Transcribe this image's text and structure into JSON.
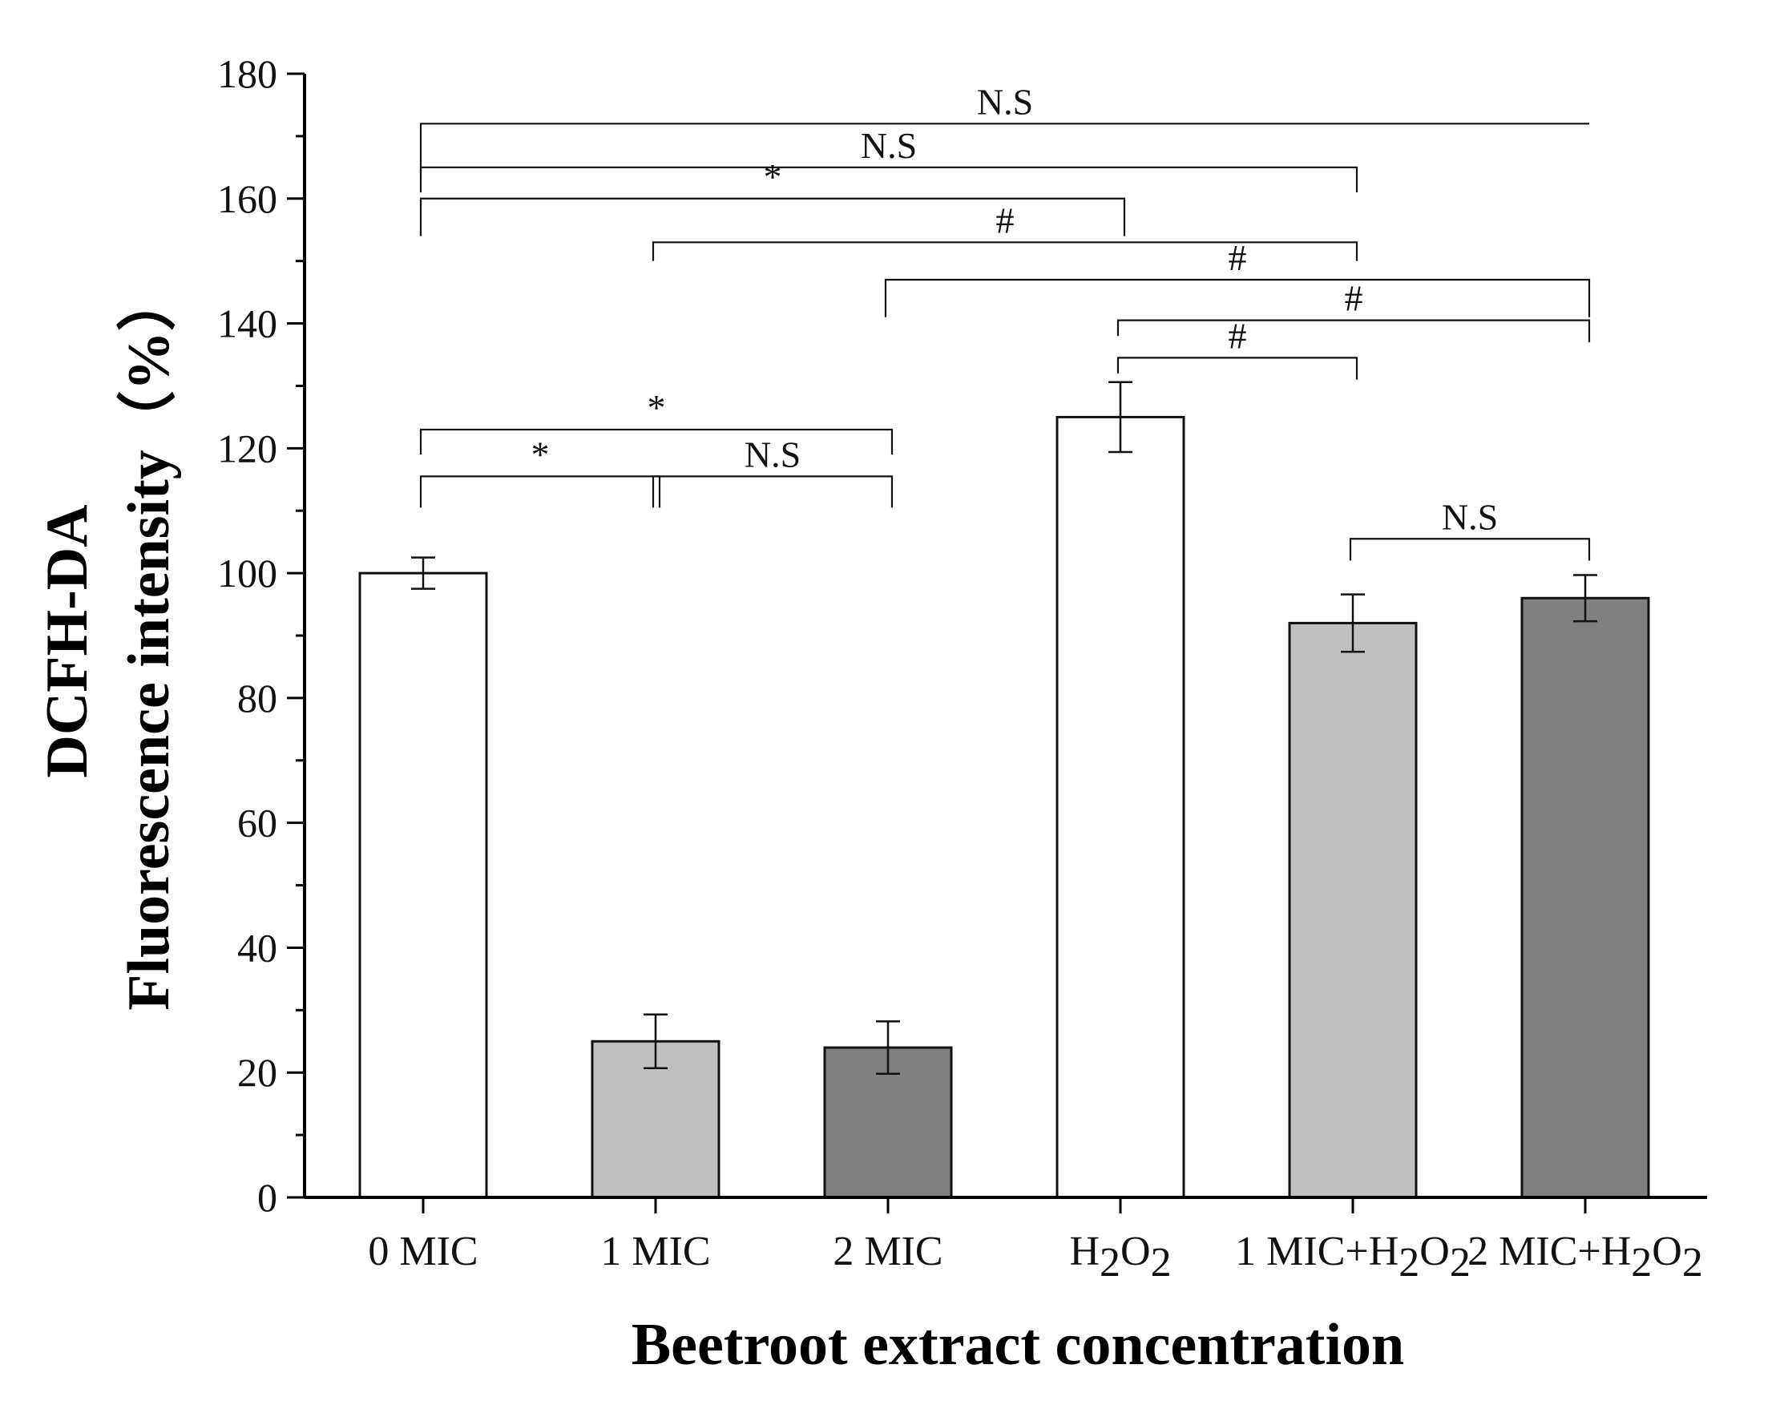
{
  "chart_data": {
    "type": "bar",
    "xlabel": "Beetroot extract concentration",
    "ylabel_line1": "DCFH-DA",
    "ylabel_line2": "Fluorescence intensity（%）",
    "ylim": [
      0,
      180
    ],
    "yticks": [
      0,
      20,
      40,
      60,
      80,
      100,
      120,
      140,
      160,
      180
    ],
    "categories": [
      {
        "label": "0 MIC",
        "base": "0 MIC",
        "h2o2": false
      },
      {
        "label": "1 MIC",
        "base": "1 MIC",
        "h2o2": false
      },
      {
        "label": "2 MIC",
        "base": "2 MIC",
        "h2o2": false
      },
      {
        "label": "H2O2",
        "base": "",
        "h2o2": true
      },
      {
        "label": "1 MIC+H2O2",
        "base": "1 MIC+",
        "h2o2": true
      },
      {
        "label": "2 MIC+H2O2",
        "base": "2 MIC+",
        "h2o2": true
      }
    ],
    "values": [
      100,
      25,
      24,
      125,
      92,
      96
    ],
    "errors": [
      2.5,
      4.3,
      4.2,
      5.6,
      4.6,
      3.7
    ],
    "bar_colors": [
      "#ffffff",
      "#c0c0c0",
      "#808080",
      "#ffffff",
      "#c0c0c0",
      "#808080"
    ],
    "significance": [
      {
        "from": 0,
        "to": 5,
        "label": "N.S",
        "level": 172,
        "drop_from": 164,
        "drop_to": 172
      },
      {
        "from": 0,
        "to": 4,
        "label": "N.S",
        "level": 165,
        "drop_from": 161,
        "drop_to": 161
      },
      {
        "from": 0,
        "to": 3,
        "label": "*",
        "level": 160,
        "drop_from": 154,
        "drop_to": 154
      },
      {
        "from": 1,
        "to": 4,
        "label": "#",
        "level": 153,
        "drop_from": 150,
        "drop_to": 150
      },
      {
        "from": 2,
        "to": 5,
        "label": "#",
        "level": 147,
        "drop_from": 141,
        "drop_to": 141
      },
      {
        "from": 3,
        "to": 5,
        "label": "#",
        "level": 140.5,
        "drop_from": 138,
        "drop_to": 137
      },
      {
        "from": 3,
        "to": 4,
        "label": "#",
        "level": 134.5,
        "drop_from": 132,
        "drop_to": 131
      },
      {
        "from": 0,
        "to": 2,
        "label": "*",
        "level": 123,
        "drop_from": 119,
        "drop_to": 119
      },
      {
        "from": 0,
        "to": 1,
        "label": "*",
        "level": 115.5,
        "drop_from": 110.5,
        "drop_to": 110.5
      },
      {
        "from": 1,
        "to": 2,
        "label": "N.S",
        "level": 115.5,
        "drop_from": 110.5,
        "drop_to": 110.5
      },
      {
        "from": 4,
        "to": 5,
        "label": "N.S",
        "level": 105.5,
        "drop_from": 102,
        "drop_to": 102
      }
    ]
  }
}
